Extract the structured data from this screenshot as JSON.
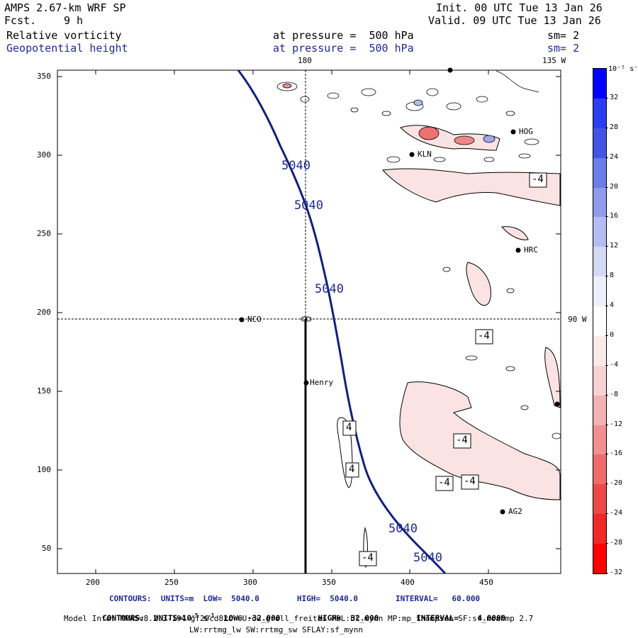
{
  "header": {
    "model": "AMPS 2.67-km WRF SP",
    "fcst_label": "Fcst.",
    "fcst_value": "9 h",
    "init": "Init. 00 UTC Tue 13 Jan 26",
    "valid": "Valid. 09 UTC Tue 13 Jan 26",
    "field1": "Relative vorticity",
    "field1_level": "at pressure =  500 hPa",
    "field1_sm": "sm= 2",
    "field2": "Geopotential height",
    "field2_level": "at pressure =  500 hPa",
    "field2_sm": "sm= 2"
  },
  "map": {
    "top_labels": [
      "180",
      "135 W"
    ],
    "right_label": "90 W",
    "x_ticks": [
      "200",
      "250",
      "300",
      "350",
      "400",
      "450"
    ],
    "y_ticks": [
      "350",
      "300",
      "250",
      "200",
      "150",
      "100",
      "50"
    ],
    "stations": [
      "KLN",
      "HRC",
      "HOG",
      "NCO",
      "Henry",
      "AG2"
    ],
    "height_labels": [
      "5040",
      "5040",
      "5040",
      "5040",
      "5040"
    ],
    "vort_labels": [
      "-4",
      "-4",
      "-4",
      "-4",
      "-4",
      "-4",
      "4",
      "4"
    ]
  },
  "colorbar": {
    "unit": "10⁻⁵ s⁻¹",
    "ticks": [
      "32",
      "28",
      "24",
      "20",
      "16",
      "12",
      "8",
      "4",
      "0",
      "-4",
      "-8",
      "-12",
      "-16",
      "-20",
      "-24",
      "-28",
      "-32"
    ],
    "colors": [
      "#0000ff",
      "#2a3ef0",
      "#4455e6",
      "#6b7de8",
      "#8f9cec",
      "#b4bdf2",
      "#d4daf6",
      "#eef0fb",
      "#ffffff",
      "#fbeaea",
      "#f8d2d2",
      "#f4b2b2",
      "#f09090",
      "#ee6c6c",
      "#ee4848",
      "#f02828",
      "#ff0000"
    ]
  },
  "footer": {
    "contours1": "CONTOURS:  UNITS=m  LOW=  5040.0        HIGH=  5040.0        INTERVAL=   60.000",
    "contours2_prefix": "CONTOURS:  UNITS=10",
    "contours2_sup1": "-5",
    "contours2_mid": " s",
    "contours2_sup2": "-1",
    "contours2_rest": "  LOW= -32.000        HIGH=  32.000        INTERVAL=    4.0000",
    "model_info": "Model Info: MPASv8.2.3-194-gf29cd82c CU:cu_grell_freitas PBL:bl_mynn MP:mp_thompson SF:sf_noahmp 2.7",
    "model_info2": "LW:rrtmg_lw SW:rrtmg_sw SFLAY:sf_mynn"
  }
}
